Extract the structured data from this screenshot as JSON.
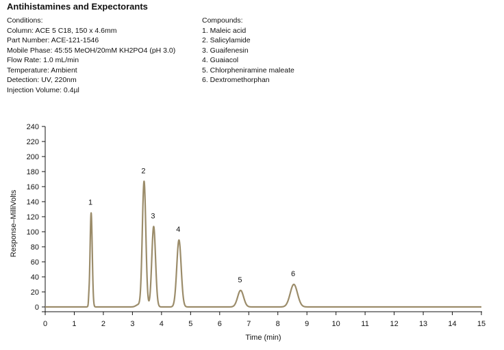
{
  "title": "Antihistamines and Expectorants",
  "conditions": {
    "heading": "Conditions:",
    "lines": [
      "Column: ACE 5 C18, 150 x 4.6mm",
      "Part Number: ACE-121-1546",
      "Mobile Phase: 45:55 MeOH/20mM KH2PO4 (pH 3.0)",
      "Flow Rate: 1.0 mL/min",
      "Temperature: Ambient",
      "Detection: UV, 220nm",
      "Injection Volume: 0.4µl"
    ]
  },
  "compounds": {
    "heading": "Compounds:",
    "lines": [
      "1. Maleic acid",
      "2. Salicylamide",
      "3. Guaifenesin",
      "4. Guaiacol",
      "5. Chlorpheniramine maleate",
      "6. Dextromethorphan"
    ]
  },
  "chart_data": {
    "type": "line",
    "xlabel": "Time (min)",
    "ylabel": "Response–MilliVolts",
    "xlim": [
      0,
      15
    ],
    "ylim": [
      0,
      240
    ],
    "xticks": [
      0,
      1,
      2,
      3,
      4,
      5,
      6,
      7,
      8,
      9,
      10,
      11,
      12,
      13,
      14,
      15
    ],
    "yticks": [
      0,
      20,
      40,
      60,
      80,
      100,
      120,
      140,
      160,
      180,
      200,
      220,
      240
    ],
    "grid": false,
    "line_color": "#9b8c6a",
    "baseline": 0,
    "peaks": [
      {
        "label": "1",
        "time": 1.58,
        "height": 125
      },
      {
        "label": "2",
        "time": 3.4,
        "height": 167
      },
      {
        "label": "3",
        "time": 3.73,
        "height": 107
      },
      {
        "label": "4",
        "time": 4.6,
        "height": 89
      },
      {
        "label": "5",
        "time": 6.72,
        "height": 22
      },
      {
        "label": "6",
        "time": 8.55,
        "height": 30
      }
    ]
  }
}
